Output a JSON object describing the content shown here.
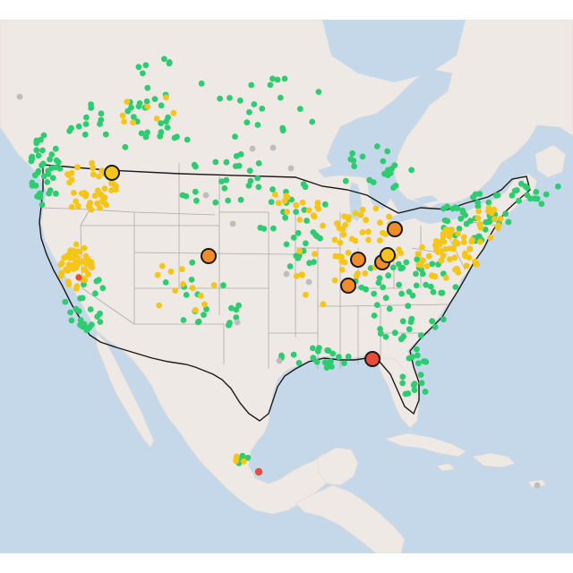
{
  "map": {
    "colors": {
      "water": "#c5d8ea",
      "land": "#efe9e5",
      "land_shade": "#e8e2de",
      "us_border": "#1a1a1a",
      "state_border": "#a9a9a9",
      "good": "#2ecc71",
      "moderate": "#f5c518",
      "usg": "#f08c2a",
      "unhealthy": "#e74c3c",
      "no_data": "#bdbdbd",
      "marker_outline": "#1a1a1a"
    },
    "marker_categories": [
      "good",
      "moderate",
      "usg",
      "unhealthy",
      "no_data"
    ]
  }
}
